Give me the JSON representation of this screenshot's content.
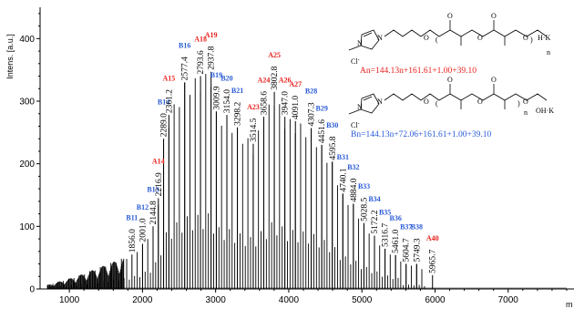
{
  "chart_data": {
    "type": "line",
    "ylabel": "Intens. [a.u.]",
    "xlabel": "m",
    "xlim": [
      600,
      7900
    ],
    "ylim": [
      0,
      450
    ],
    "x_ticks": [
      1000,
      2000,
      3000,
      4000,
      5000,
      6000,
      7000
    ],
    "y_ticks": [
      0,
      100,
      200,
      300,
      400
    ],
    "colors": {
      "A": "#e8201c",
      "B": "#2a5bd7",
      "spectrum": "#000000"
    },
    "peak_labels": [
      {
        "mz": 1856.0,
        "height": 55,
        "tag": "B11",
        "series": "B"
      },
      {
        "mz": 2001.0,
        "height": 72,
        "tag": "B12",
        "series": "B"
      },
      {
        "mz": 2144.8,
        "height": 100,
        "tag": "B13",
        "series": "B"
      },
      {
        "mz": 2216.9,
        "height": 145,
        "tag": "A14",
        "series": "A"
      },
      {
        "mz": 2289.0,
        "height": 240,
        "tag": "B14",
        "series": "B"
      },
      {
        "mz": 2361.2,
        "height": 278,
        "tag": "A15",
        "series": "A"
      },
      {
        "mz": 2577.4,
        "height": 330,
        "tag": "B16",
        "series": "B"
      },
      {
        "mz": 2793.6,
        "height": 340,
        "tag": "A18",
        "series": "A"
      },
      {
        "mz": 2937.8,
        "height": 347,
        "tag": "A19",
        "series": "A"
      },
      {
        "mz": 3009.9,
        "height": 283,
        "tag": "B19",
        "series": "B"
      },
      {
        "mz": 3154.0,
        "height": 278,
        "tag": "B20",
        "series": "B"
      },
      {
        "mz": 3298.2,
        "height": 258,
        "tag": "B21",
        "series": "B"
      },
      {
        "mz": 3514.5,
        "height": 232,
        "tag": "A23",
        "series": "A"
      },
      {
        "mz": 3658.6,
        "height": 275,
        "tag": "A24",
        "series": "A"
      },
      {
        "mz": 3802.8,
        "height": 315,
        "tag": "A25",
        "series": "A"
      },
      {
        "mz": 3947.0,
        "height": 275,
        "tag": "A26",
        "series": "A"
      },
      {
        "mz": 4091.0,
        "height": 268,
        "tag": "A27",
        "series": "A"
      },
      {
        "mz": 4307.3,
        "height": 257,
        "tag": "B28",
        "series": "B"
      },
      {
        "mz": 4451.6,
        "height": 230,
        "tag": "B29",
        "series": "B"
      },
      {
        "mz": 4595.8,
        "height": 203,
        "tag": "B30",
        "series": "B"
      },
      {
        "mz": 4740.1,
        "height": 152,
        "tag": "B31",
        "series": "B"
      },
      {
        "mz": 4884.0,
        "height": 136,
        "tag": "B32",
        "series": "B"
      },
      {
        "mz": 5028.5,
        "height": 105,
        "tag": "B33",
        "series": "B"
      },
      {
        "mz": 5172.2,
        "height": 85,
        "tag": "B34",
        "series": "B"
      },
      {
        "mz": 5316.7,
        "height": 64,
        "tag": "B35",
        "series": "B"
      },
      {
        "mz": 5461.0,
        "height": 54,
        "tag": "B36",
        "series": "B"
      },
      {
        "mz": 5604.7,
        "height": 40,
        "tag": "B37",
        "series": "B"
      },
      {
        "mz": 5749.3,
        "height": 40,
        "tag": "B38",
        "series": "B"
      },
      {
        "mz": 5965.7,
        "height": 22,
        "tag": "A40",
        "series": "A"
      }
    ],
    "structures": [
      {
        "formula": "An=144.13n+161.61+1.00+39.10",
        "counterion": "Cl",
        "end_group": "H·K",
        "repeat": "n",
        "color": "#e8201c"
      },
      {
        "formula": "Bn=144.13n+72.06+161.61+1.00+39.10",
        "counterion": "Cl",
        "end_group": "OH·K",
        "repeat": "n",
        "color": "#2a5bd7"
      }
    ]
  }
}
